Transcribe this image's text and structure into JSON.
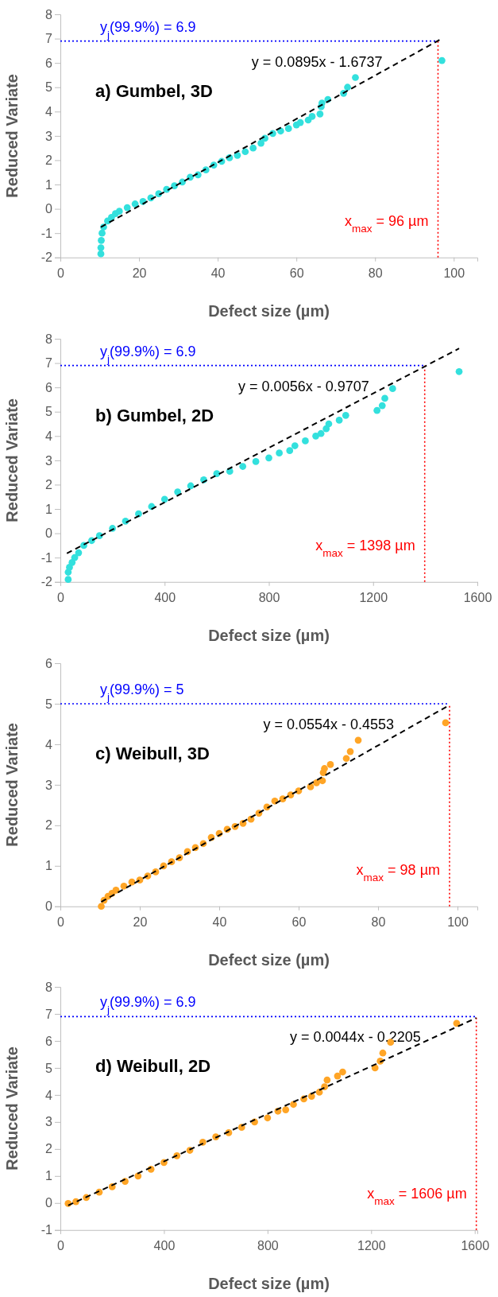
{
  "chart_data": [
    {
      "type": "scatter",
      "title": "a) Gumbel, 3D",
      "xlabel": "Defect size (µm)",
      "ylabel": "Reduced Variate",
      "xlim": [
        0,
        106
      ],
      "xticks": [
        0,
        20,
        40,
        60,
        80,
        100
      ],
      "ylim": [
        -2,
        8
      ],
      "yticks": [
        -2,
        -1,
        0,
        1,
        2,
        3,
        4,
        5,
        6,
        7,
        8
      ],
      "annotations": [
        "y = 0.0895x - 1.6737"
      ],
      "ref_lines": [
        {
          "axis": "y",
          "value": 6.9,
          "label": "y$_{j}$(99.9%) = 6.9",
          "color": "#0000ff",
          "line_style": "dotted"
        },
        {
          "axis": "x",
          "value": 96,
          "label": "x$_{max}$ = 96 µm",
          "color": "#ff0000",
          "line_style": "dotted"
        }
      ],
      "series": [
        {
          "type": "scatter",
          "marker": "circle",
          "color": "#33e0dd",
          "x": [
            10.3,
            10.3,
            10.4,
            10.6,
            11,
            12,
            13,
            14,
            15,
            17,
            19,
            21,
            23,
            25,
            27,
            29,
            31,
            33,
            35,
            37,
            39,
            41,
            43,
            45,
            47,
            49,
            51,
            52,
            54,
            56,
            58,
            60,
            61,
            63,
            64,
            66,
            66.3,
            66.5,
            68,
            72,
            73,
            75,
            97
          ],
          "values": [
            -1.85,
            -1.6,
            -1.3,
            -1.0,
            -0.75,
            -0.5,
            -0.35,
            -0.2,
            -0.1,
            0.05,
            0.2,
            0.3,
            0.45,
            0.62,
            0.8,
            0.95,
            1.1,
            1.3,
            1.4,
            1.6,
            1.8,
            1.95,
            2.1,
            2.2,
            2.35,
            2.5,
            2.7,
            2.9,
            3.1,
            3.2,
            3.3,
            3.45,
            3.55,
            3.65,
            3.8,
            3.9,
            4.2,
            4.35,
            4.5,
            4.75,
            5.0,
            5.4,
            6.1
          ]
        },
        {
          "type": "line",
          "color": "#000000",
          "line_style": "dashed",
          "marker": "none",
          "x": [
            10.3,
            96.5
          ],
          "values": [
            -0.75,
            6.96
          ]
        }
      ]
    },
    {
      "type": "scatter",
      "title": "b) Gumbel, 2D",
      "xlabel": "Defect size (µm)",
      "ylabel": "Reduced Variate",
      "xlim": [
        0,
        1600
      ],
      "xticks": [
        0,
        400,
        800,
        1200,
        1600
      ],
      "ylim": [
        -2,
        8
      ],
      "yticks": [
        -2,
        -1,
        0,
        1,
        2,
        3,
        4,
        5,
        6,
        7,
        8
      ],
      "annotations": [
        "y = 0.0056x - 0.9707"
      ],
      "ref_lines": [
        {
          "axis": "y",
          "value": 6.9,
          "label": "y$_{j}$(99.9%) = 6.9",
          "color": "#0000ff",
          "line_style": "dotted"
        },
        {
          "axis": "x",
          "value": 1398,
          "label": "x$_{max}$ = 1398 µm",
          "color": "#ff0000",
          "line_style": "dotted"
        }
      ],
      "series": [
        {
          "type": "scatter",
          "marker": "circle",
          "color": "#33e0dd",
          "x": [
            30,
            30,
            35,
            45,
            55,
            70,
            90,
            120,
            150,
            200,
            250,
            300,
            350,
            400,
            450,
            500,
            550,
            600,
            650,
            700,
            750,
            800,
            840,
            880,
            900,
            940,
            980,
            1000,
            1020,
            1030,
            1070,
            1095,
            1215,
            1235,
            1245,
            1275,
            1530
          ],
          "values": [
            -1.9,
            -1.6,
            -1.4,
            -1.2,
            -1.0,
            -0.8,
            -0.5,
            -0.3,
            -0.1,
            0.2,
            0.5,
            0.8,
            1.1,
            1.4,
            1.7,
            1.95,
            2.2,
            2.45,
            2.55,
            2.75,
            2.95,
            3.1,
            3.3,
            3.4,
            3.6,
            3.8,
            4.0,
            4.1,
            4.3,
            4.5,
            4.65,
            4.85,
            5.05,
            5.25,
            5.55,
            5.95,
            6.65
          ]
        },
        {
          "type": "line",
          "color": "#000000",
          "line_style": "dashed",
          "marker": "none",
          "x": [
            25,
            1530
          ],
          "values": [
            -0.83,
            7.6
          ]
        }
      ]
    },
    {
      "type": "scatter",
      "title": "c) Weibull, 3D",
      "xlabel": "Defect size (µm)",
      "ylabel": "Reduced Variate",
      "xlim": [
        0,
        105
      ],
      "xticks": [
        0,
        20,
        40,
        60,
        80,
        100
      ],
      "ylim": [
        0,
        6
      ],
      "yticks": [
        0,
        1,
        2,
        3,
        4,
        5,
        6
      ],
      "annotations": [
        "y = 0.0554x - 0.4553"
      ],
      "ref_lines": [
        {
          "axis": "y",
          "value": 5,
          "label": "y$_{j}$(99.9%) = 5",
          "color": "#0000ff",
          "line_style": "dotted"
        },
        {
          "axis": "x",
          "value": 98,
          "label": "x$_{max}$ = 98 µm",
          "color": "#ff0000",
          "line_style": "dotted"
        }
      ],
      "series": [
        {
          "type": "scatter",
          "marker": "circle",
          "color": "#ffa526",
          "x": [
            10.3,
            11,
            12,
            13,
            14,
            16,
            18,
            20,
            22,
            24,
            26,
            28,
            30,
            32,
            34,
            36,
            38,
            40,
            42,
            44,
            46,
            48,
            50,
            52,
            54,
            56,
            58,
            60,
            63,
            64.5,
            66,
            66.2,
            66.5,
            68,
            72,
            73,
            75,
            97
          ],
          "values": [
            0,
            0.15,
            0.25,
            0.32,
            0.4,
            0.5,
            0.6,
            0.65,
            0.75,
            0.85,
            1.0,
            1.1,
            1.2,
            1.35,
            1.45,
            1.55,
            1.7,
            1.8,
            1.9,
            1.97,
            2.05,
            2.15,
            2.3,
            2.45,
            2.6,
            2.65,
            2.75,
            2.85,
            2.95,
            3.05,
            3.1,
            3.3,
            3.4,
            3.5,
            3.65,
            3.82,
            4.1,
            4.53
          ]
        },
        {
          "type": "line",
          "color": "#000000",
          "line_style": "dashed",
          "marker": "none",
          "x": [
            10.3,
            97.5
          ],
          "values": [
            0.11,
            4.94
          ]
        }
      ]
    },
    {
      "type": "scatter",
      "title": "d) Weibull, 2D",
      "xlabel": "Defect size (µm)",
      "ylabel": "Reduced Variate",
      "xlim": [
        0,
        1610
      ],
      "xticks": [
        0,
        400,
        800,
        1200,
        1600
      ],
      "ylim": [
        -1,
        8
      ],
      "yticks": [
        -1,
        0,
        1,
        2,
        3,
        4,
        5,
        6,
        7,
        8
      ],
      "annotations": [
        "y = 0.0044x - 0.2205"
      ],
      "ref_lines": [
        {
          "axis": "y",
          "value": 6.9,
          "label": "y$_{j}$(99.9%) = 6.9",
          "color": "#0000ff",
          "line_style": "dotted"
        },
        {
          "axis": "x",
          "value": 1606,
          "label": "x$_{max}$ = 1606 µm",
          "color": "#ff0000",
          "line_style": "dotted"
        }
      ],
      "series": [
        {
          "type": "scatter",
          "marker": "circle",
          "color": "#ffa526",
          "x": [
            30,
            60,
            100,
            150,
            200,
            250,
            300,
            350,
            400,
            450,
            500,
            550,
            600,
            650,
            700,
            750,
            800,
            840,
            870,
            900,
            940,
            970,
            1000,
            1020,
            1030,
            1070,
            1090,
            1215,
            1235,
            1245,
            1275,
            1530
          ],
          "values": [
            -0.02,
            0.05,
            0.2,
            0.4,
            0.6,
            0.8,
            1.0,
            1.25,
            1.5,
            1.75,
            1.95,
            2.25,
            2.45,
            2.6,
            2.8,
            3.0,
            3.15,
            3.4,
            3.45,
            3.65,
            3.85,
            3.95,
            4.1,
            4.3,
            4.55,
            4.7,
            4.85,
            5.0,
            5.25,
            5.55,
            5.95,
            6.65
          ]
        },
        {
          "type": "line",
          "color": "#000000",
          "line_style": "dashed",
          "marker": "none",
          "x": [
            30,
            1606
          ],
          "values": [
            -0.09,
            6.85
          ]
        }
      ]
    }
  ]
}
